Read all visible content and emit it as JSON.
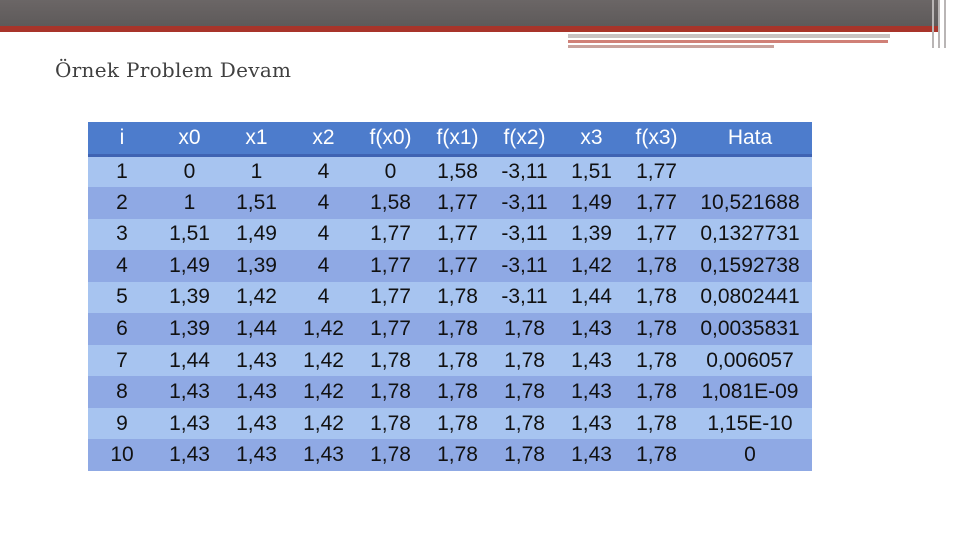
{
  "slide": {
    "title": "Örnek Problem Devam"
  },
  "table": {
    "headers": [
      "i",
      "x0",
      "x1",
      "x2",
      "f(x0)",
      "f(x1)",
      "f(x2)",
      "x3",
      "f(x3)",
      "Hata"
    ],
    "rows": [
      [
        "1",
        "0",
        "1",
        "4",
        "0",
        "1,58",
        "-3,11",
        "1,51",
        "1,77",
        ""
      ],
      [
        "2",
        "1",
        "1,51",
        "4",
        "1,58",
        "1,77",
        "-3,11",
        "1,49",
        "1,77",
        "10,521688"
      ],
      [
        "3",
        "1,51",
        "1,49",
        "4",
        "1,77",
        "1,77",
        "-3,11",
        "1,39",
        "1,77",
        "0,1327731"
      ],
      [
        "4",
        "1,49",
        "1,39",
        "4",
        "1,77",
        "1,77",
        "-3,11",
        "1,42",
        "1,78",
        "0,1592738"
      ],
      [
        "5",
        "1,39",
        "1,42",
        "4",
        "1,77",
        "1,78",
        "-3,11",
        "1,44",
        "1,78",
        "0,0802441"
      ],
      [
        "6",
        "1,39",
        "1,44",
        "1,42",
        "1,77",
        "1,78",
        "1,78",
        "1,43",
        "1,78",
        "0,0035831"
      ],
      [
        "7",
        "1,44",
        "1,43",
        "1,42",
        "1,78",
        "1,78",
        "1,78",
        "1,43",
        "1,78",
        "0,006057"
      ],
      [
        "8",
        "1,43",
        "1,43",
        "1,42",
        "1,78",
        "1,78",
        "1,78",
        "1,43",
        "1,78",
        "1,081E-09"
      ],
      [
        "9",
        "1,43",
        "1,43",
        "1,42",
        "1,78",
        "1,78",
        "1,78",
        "1,43",
        "1,78",
        "1,15E-10"
      ],
      [
        "10",
        "1,43",
        "1,43",
        "1,43",
        "1,78",
        "1,78",
        "1,78",
        "1,43",
        "1,78",
        "0"
      ]
    ]
  },
  "theme": {
    "header_color": "#4d7ccc",
    "row_light": "#a7c4f0",
    "row_dark": "#8fa9e4",
    "accent_red": "#a8342a",
    "bar_gray": "#6b6666"
  }
}
